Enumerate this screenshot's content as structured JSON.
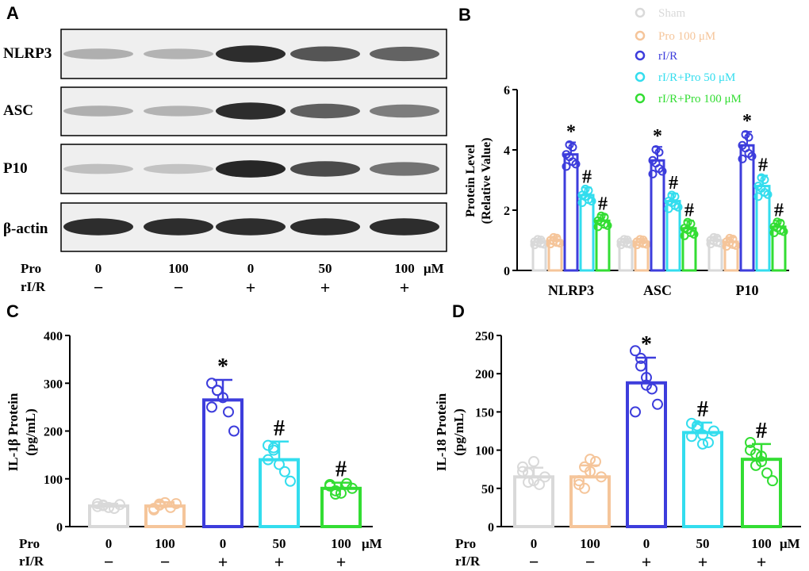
{
  "panels": {
    "a": "A",
    "b": "B",
    "c": "C",
    "d": "D"
  },
  "colors": {
    "sham": "#d9d9d9",
    "pro100": "#f5c59a",
    "rir": "#3d3ddc",
    "rir_pro50": "#33ddee",
    "rir_pro100": "#33dd33"
  },
  "western_blot": {
    "rows": [
      "NLRP3",
      "ASC",
      "P10",
      "β-actin"
    ],
    "pro_label": "Pro",
    "rir_label": "rI/R",
    "pro_values": [
      "0",
      "100",
      "0",
      "50",
      "100"
    ],
    "rir_values": [
      "−",
      "−",
      "+",
      "+",
      "+"
    ],
    "unit": "μM",
    "band_intensity": [
      [
        0.3,
        0.28,
        0.95,
        0.75,
        0.68
      ],
      [
        0.3,
        0.28,
        0.95,
        0.7,
        0.55
      ],
      [
        0.22,
        0.2,
        0.98,
        0.8,
        0.6
      ],
      [
        0.95,
        0.95,
        0.95,
        0.95,
        0.95
      ]
    ]
  },
  "chart_data": [
    {
      "id": "B",
      "type": "bar",
      "categories": [
        "NLRP3",
        "ASC",
        "P10"
      ],
      "ylabel": "Protein Level",
      "ylabel2": "(Relative Value)",
      "ylim": [
        0,
        6
      ],
      "yticks": [
        "0",
        "2",
        "4",
        "6"
      ],
      "legend": [
        "Sham",
        "Pro 100 μM",
        "rI/R",
        "rI/R+Pro 50 μM",
        "rI/R+Pro 100 μM"
      ],
      "legend_position": "top-right",
      "series": [
        {
          "name": "Sham",
          "color_key": "sham",
          "values": [
            0.95,
            0.95,
            1.0
          ],
          "errors": [
            0.1,
            0.1,
            0.12
          ],
          "marks": [
            "",
            "",
            ""
          ]
        },
        {
          "name": "Pro 100 μM",
          "color_key": "pro100",
          "values": [
            1.0,
            0.95,
            0.95
          ],
          "errors": [
            0.12,
            0.1,
            0.15
          ],
          "marks": [
            "",
            "",
            ""
          ]
        },
        {
          "name": "rI/R",
          "color_key": "rir",
          "values": [
            3.85,
            3.65,
            4.15
          ],
          "errors": [
            0.4,
            0.45,
            0.45
          ],
          "marks": [
            "*",
            "*",
            "*"
          ]
        },
        {
          "name": "rI/R+Pro 50 μM",
          "color_key": "rir_pro50",
          "values": [
            2.5,
            2.3,
            2.8
          ],
          "errors": [
            0.25,
            0.25,
            0.35
          ],
          "marks": [
            "#",
            "#",
            "#"
          ]
        },
        {
          "name": "rI/R+Pro 100 μM",
          "color_key": "rir_pro100",
          "values": [
            1.65,
            1.4,
            1.45
          ],
          "errors": [
            0.2,
            0.25,
            0.2
          ],
          "marks": [
            "#",
            "#",
            "#"
          ]
        }
      ]
    },
    {
      "id": "C",
      "type": "bar",
      "ylabel": "IL-1β Protein",
      "ylabel2": "(pg/mL)",
      "ylim": [
        0,
        400
      ],
      "yticks": [
        "0",
        "100",
        "200",
        "300",
        "400"
      ],
      "pro_label": "Pro",
      "rir_label": "rI/R",
      "pro_values": [
        "0",
        "100",
        "0",
        "50",
        "100"
      ],
      "rir_values": [
        "−",
        "−",
        "+",
        "+",
        "+"
      ],
      "unit": "μM",
      "color_keys": [
        "sham",
        "pro100",
        "rir",
        "rir_pro50",
        "rir_pro100"
      ],
      "values": [
        43,
        43,
        265,
        140,
        80
      ],
      "errors": [
        5,
        8,
        42,
        38,
        12
      ],
      "marks": [
        "",
        "",
        "*",
        "#",
        "#"
      ],
      "points": [
        [
          48,
          45,
          40,
          38,
          46,
          42,
          44
        ],
        [
          38,
          45,
          50,
          40,
          48,
          35,
          47
        ],
        [
          300,
          285,
          270,
          240,
          200,
          250,
          285
        ],
        [
          170,
          160,
          130,
          115,
          95,
          140,
          165
        ],
        [
          85,
          75,
          70,
          90,
          80,
          88,
          68
        ]
      ]
    },
    {
      "id": "D",
      "type": "bar",
      "ylabel": "IL-18 Protein",
      "ylabel2": "(pg/mL)",
      "ylim": [
        0,
        250
      ],
      "yticks": [
        "0",
        "50",
        "100",
        "150",
        "200",
        "250"
      ],
      "pro_label": "Pro",
      "rir_label": "rI/R",
      "pro_values": [
        "0",
        "100",
        "0",
        "50",
        "100"
      ],
      "rir_values": [
        "−",
        "−",
        "+",
        "+",
        "+"
      ],
      "unit": "μM",
      "color_keys": [
        "sham",
        "pro100",
        "rir",
        "rir_pro50",
        "rir_pro100"
      ],
      "values": [
        65,
        65,
        188,
        123,
        88
      ],
      "errors": [
        12,
        15,
        33,
        13,
        20
      ],
      "marks": [
        "",
        "",
        "*",
        "#",
        "#"
      ],
      "points": [
        [
          78,
          70,
          60,
          55,
          65,
          72,
          58,
          85
        ],
        [
          55,
          50,
          72,
          85,
          65,
          60,
          78,
          88
        ],
        [
          230,
          210,
          195,
          180,
          160,
          150,
          220,
          185
        ],
        [
          135,
          128,
          120,
          110,
          125,
          118,
          132,
          108
        ],
        [
          110,
          95,
          85,
          70,
          60,
          100,
          80,
          92
        ]
      ]
    }
  ]
}
